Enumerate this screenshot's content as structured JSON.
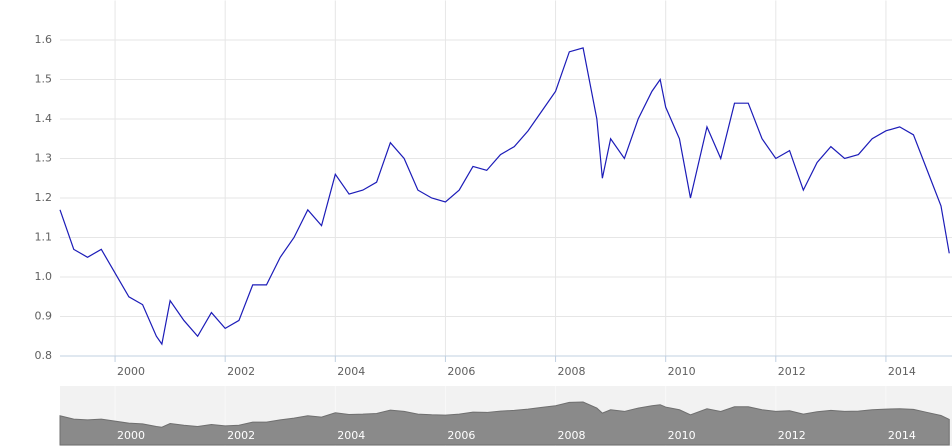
{
  "chart_data": {
    "type": "line",
    "x": [
      1999.0,
      1999.25,
      1999.5,
      1999.75,
      2000.0,
      2000.25,
      2000.5,
      2000.75,
      2000.85,
      2001.0,
      2001.25,
      2001.5,
      2001.75,
      2002.0,
      2002.25,
      2002.5,
      2002.75,
      2003.0,
      2003.25,
      2003.5,
      2003.75,
      2004.0,
      2004.25,
      2004.5,
      2004.75,
      2005.0,
      2005.25,
      2005.5,
      2005.75,
      2006.0,
      2006.25,
      2006.5,
      2006.75,
      2007.0,
      2007.25,
      2007.5,
      2007.75,
      2008.0,
      2008.25,
      2008.5,
      2008.75,
      2008.85,
      2009.0,
      2009.25,
      2009.5,
      2009.75,
      2009.9,
      2010.0,
      2010.25,
      2010.45,
      2010.75,
      2011.0,
      2011.25,
      2011.5,
      2011.75,
      2012.0,
      2012.25,
      2012.5,
      2012.75,
      2013.0,
      2013.25,
      2013.5,
      2013.75,
      2014.0,
      2014.25,
      2014.5,
      2014.75,
      2015.0,
      2015.15
    ],
    "series": [
      {
        "color": "#1c1cb8",
        "values": [
          1.17,
          1.07,
          1.05,
          1.07,
          1.01,
          0.95,
          0.93,
          0.85,
          0.83,
          0.94,
          0.89,
          0.85,
          0.91,
          0.87,
          0.89,
          0.98,
          0.98,
          1.05,
          1.1,
          1.17,
          1.13,
          1.26,
          1.21,
          1.22,
          1.24,
          1.34,
          1.3,
          1.22,
          1.2,
          1.19,
          1.22,
          1.28,
          1.27,
          1.31,
          1.33,
          1.37,
          1.42,
          1.47,
          1.57,
          1.58,
          1.4,
          1.25,
          1.35,
          1.3,
          1.4,
          1.47,
          1.5,
          1.43,
          1.35,
          1.2,
          1.38,
          1.3,
          1.44,
          1.44,
          1.35,
          1.3,
          1.32,
          1.22,
          1.29,
          1.33,
          1.3,
          1.31,
          1.35,
          1.37,
          1.38,
          1.36,
          1.27,
          1.18,
          1.06
        ]
      }
    ],
    "xlim": [
      1999.0,
      2015.2
    ],
    "xticks": [
      2000,
      2002,
      2004,
      2006,
      2008,
      2010,
      2012,
      2014
    ],
    "ylim": [
      0.8,
      1.7
    ],
    "yticks": [
      0.8,
      0.9,
      {
        "value": 1,
        "label": "1.0"
      },
      1.1,
      1.2,
      1.3,
      1.4,
      1.5,
      1.6
    ],
    "grid": true
  }
}
